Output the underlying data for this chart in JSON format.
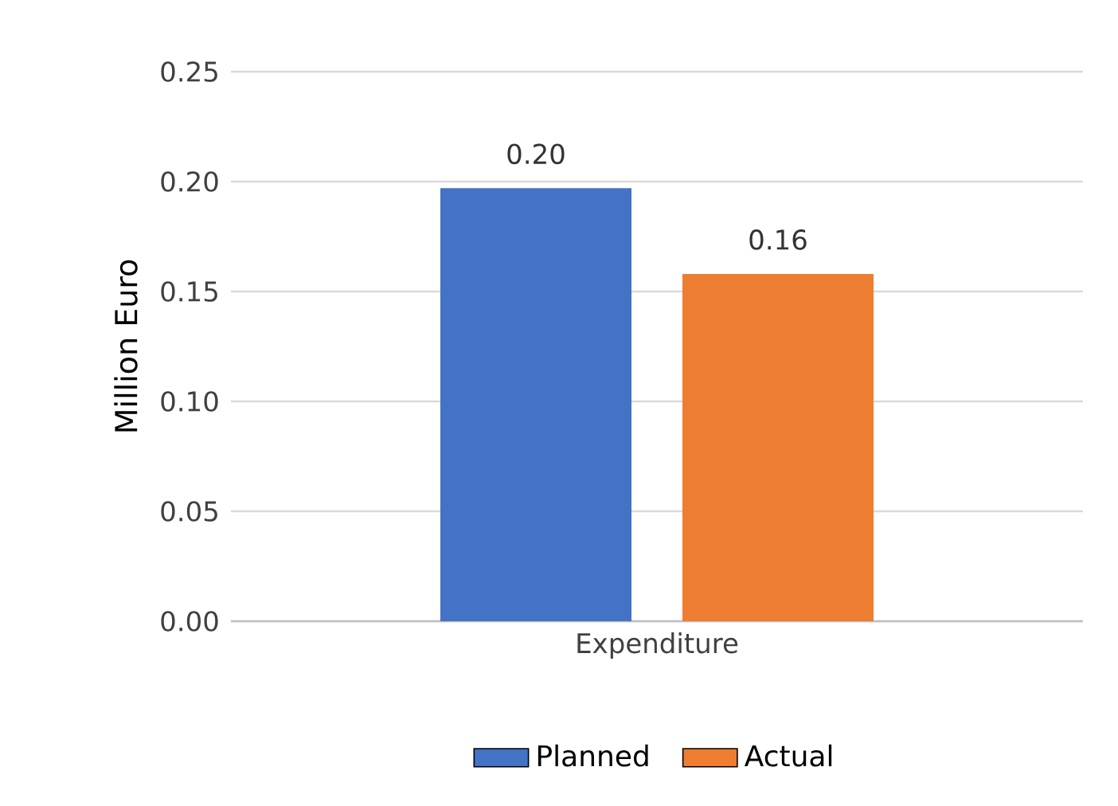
{
  "chart_data": {
    "type": "bar",
    "ylabel": "Million Euro",
    "categories": [
      "Expenditure"
    ],
    "series": [
      {
        "name": "Planned",
        "color": "#4472c4",
        "values": [
          0.197
        ],
        "value_labels": [
          "0.20"
        ]
      },
      {
        "name": "Actual",
        "color": "#ed7d31",
        "values": [
          0.158
        ],
        "value_labels": [
          "0.16"
        ]
      }
    ],
    "ylim": [
      0,
      0.25
    ],
    "yticks": [
      {
        "value": 0,
        "label": "0.00"
      },
      {
        "value": 0.05,
        "label": "0.05"
      },
      {
        "value": 0.1,
        "label": "0.10"
      },
      {
        "value": 0.15,
        "label": "0.15"
      },
      {
        "value": 0.2,
        "label": "0.20"
      },
      {
        "value": 0.25,
        "label": "0.25"
      }
    ],
    "grid": "y",
    "legend": "bottom"
  }
}
